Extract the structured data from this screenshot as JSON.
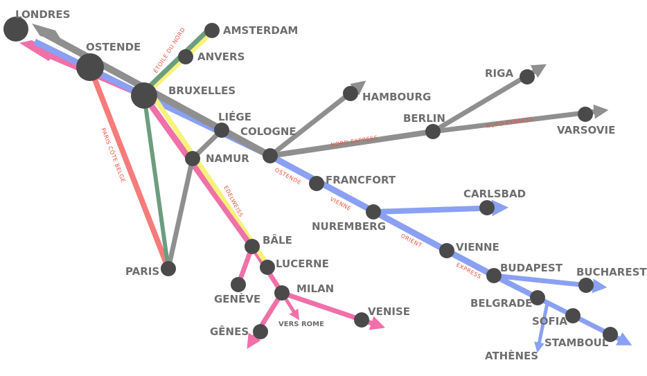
{
  "colors": {
    "grey": "#8f8f8f",
    "blue": "#8aa0f2",
    "pink": "#f070a8",
    "salmon": "#f77b7b",
    "green": "#6c9d7f",
    "yellow": "#f7f27a",
    "station": "#4a4a4a",
    "route_text": "#e5533d",
    "city_text": "#6e6e6e"
  },
  "cities": {
    "londres": "LONDRES",
    "ostende": "OSTENDE",
    "amsterdam": "AMSTERDAM",
    "anvers": "ANVERS",
    "bruxelles": "BRUXELLES",
    "liege": "LIÉGE",
    "cologne": "COLOGNE",
    "namur": "NAMUR",
    "hambourg": "HAMBOURG",
    "berlin": "BERLIN",
    "riga": "RIGA",
    "varsovie": "VARSOVIE",
    "francfort": "FRANCFORT",
    "nuremberg": "NUREMBERG",
    "carlsbad": "CARLSBAD",
    "vienne": "VIENNE",
    "budapest": "BUDAPEST",
    "bucharest": "BUCHAREST",
    "belgrade": "BELGRADE",
    "sofia": "SOFIA",
    "stamboul": "STAMBOUL",
    "athenes": "ATHÈNES",
    "paris": "PARIS",
    "bale": "BÂLE",
    "lucerne": "LUCERNE",
    "milan": "MILAN",
    "geneve": "GENÈVE",
    "genes": "GÊNES",
    "venise": "VENISE"
  },
  "routes": {
    "etoile_du_nord": "ÉTOILE DU NORD",
    "nord_express_1": "NORD EXPRESS",
    "nord_express_2": "NORD EXPRESS",
    "ostende": "OSTENDE",
    "vienne": "VIENNE",
    "orient": "ORIENT",
    "express": "EXPRESS",
    "paris_cote_belge": "PARIS CÔTE BELGE",
    "edelweiss": "EDELWEISS",
    "vers_rome": "VERS ROME"
  }
}
